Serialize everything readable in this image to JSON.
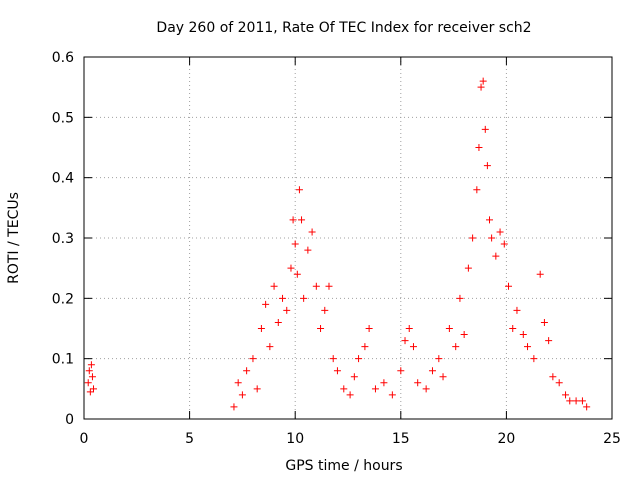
{
  "chart_data": {
    "type": "scatter",
    "title": "Day 260 of 2011, Rate Of TEC Index for receiver sch2",
    "xlabel": "GPS time / hours",
    "ylabel": "ROTI / TECUs",
    "xlim": [
      0,
      25
    ],
    "ylim": [
      0,
      0.6
    ],
    "x_ticks": [
      "0",
      "5",
      "10",
      "15",
      "20",
      "25"
    ],
    "y_ticks": [
      "0",
      "0.1",
      "0.2",
      "0.3",
      "0.4",
      "0.5",
      "0.6"
    ],
    "grid": true,
    "legend": "none",
    "marker": "plus",
    "color": "#ff0000",
    "series": [
      {
        "points": [
          [
            0.2,
            0.06
          ],
          [
            0.25,
            0.08
          ],
          [
            0.3,
            0.045
          ],
          [
            0.35,
            0.09
          ],
          [
            0.4,
            0.07
          ],
          [
            0.45,
            0.05
          ],
          [
            7.1,
            0.02
          ],
          [
            7.3,
            0.06
          ],
          [
            7.5,
            0.04
          ],
          [
            7.7,
            0.08
          ],
          [
            8.0,
            0.1
          ],
          [
            8.2,
            0.05
          ],
          [
            8.4,
            0.15
          ],
          [
            8.6,
            0.19
          ],
          [
            8.8,
            0.12
          ],
          [
            9.0,
            0.22
          ],
          [
            9.2,
            0.16
          ],
          [
            9.4,
            0.2
          ],
          [
            9.6,
            0.18
          ],
          [
            9.8,
            0.25
          ],
          [
            9.9,
            0.33
          ],
          [
            10.0,
            0.29
          ],
          [
            10.1,
            0.24
          ],
          [
            10.2,
            0.38
          ],
          [
            10.3,
            0.33
          ],
          [
            10.4,
            0.2
          ],
          [
            10.6,
            0.28
          ],
          [
            10.8,
            0.31
          ],
          [
            11.0,
            0.22
          ],
          [
            11.2,
            0.15
          ],
          [
            11.4,
            0.18
          ],
          [
            11.6,
            0.22
          ],
          [
            11.8,
            0.1
          ],
          [
            12.0,
            0.08
          ],
          [
            12.3,
            0.05
          ],
          [
            12.6,
            0.04
          ],
          [
            12.8,
            0.07
          ],
          [
            13.0,
            0.1
          ],
          [
            13.3,
            0.12
          ],
          [
            13.5,
            0.15
          ],
          [
            13.8,
            0.05
          ],
          [
            14.2,
            0.06
          ],
          [
            14.6,
            0.04
          ],
          [
            15.0,
            0.08
          ],
          [
            15.2,
            0.13
          ],
          [
            15.4,
            0.15
          ],
          [
            15.6,
            0.12
          ],
          [
            15.8,
            0.06
          ],
          [
            16.2,
            0.05
          ],
          [
            16.5,
            0.08
          ],
          [
            16.8,
            0.1
          ],
          [
            17.0,
            0.07
          ],
          [
            17.3,
            0.15
          ],
          [
            17.6,
            0.12
          ],
          [
            17.8,
            0.2
          ],
          [
            18.0,
            0.14
          ],
          [
            18.2,
            0.25
          ],
          [
            18.4,
            0.3
          ],
          [
            18.6,
            0.38
          ],
          [
            18.7,
            0.45
          ],
          [
            18.8,
            0.55
          ],
          [
            18.9,
            0.56
          ],
          [
            19.0,
            0.48
          ],
          [
            19.1,
            0.42
          ],
          [
            19.2,
            0.33
          ],
          [
            19.3,
            0.3
          ],
          [
            19.5,
            0.27
          ],
          [
            19.7,
            0.31
          ],
          [
            19.9,
            0.29
          ],
          [
            20.1,
            0.22
          ],
          [
            20.3,
            0.15
          ],
          [
            20.5,
            0.18
          ],
          [
            20.8,
            0.14
          ],
          [
            21.0,
            0.12
          ],
          [
            21.3,
            0.1
          ],
          [
            21.6,
            0.24
          ],
          [
            21.8,
            0.16
          ],
          [
            22.0,
            0.13
          ],
          [
            22.2,
            0.07
          ],
          [
            22.5,
            0.06
          ],
          [
            22.8,
            0.04
          ],
          [
            23.0,
            0.03
          ],
          [
            23.3,
            0.03
          ],
          [
            23.6,
            0.03
          ],
          [
            23.8,
            0.02
          ]
        ]
      }
    ]
  }
}
